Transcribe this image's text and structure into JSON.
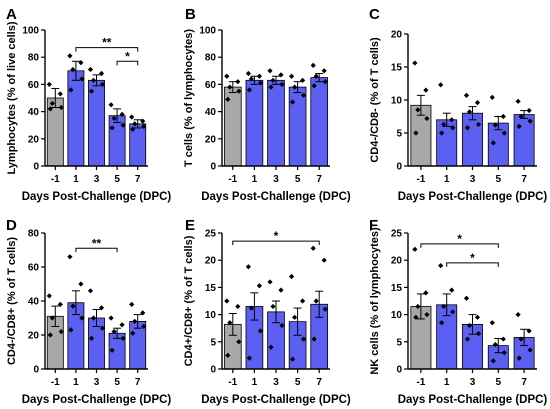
{
  "figure": {
    "colors": {
      "control_bar": "#a8a8a8",
      "treated_bar": "#5b5ff2",
      "point": "#000000",
      "axis": "#000000"
    }
  },
  "chart_data": [
    {
      "type": "bar",
      "panel_letter": "A",
      "ylabel": "Lymphocytes (% of live cells)",
      "xlabel": "Days Post-Challenge (DPC)",
      "categories": [
        "-1",
        "1",
        "3",
        "5",
        "7"
      ],
      "values": [
        50,
        70,
        63,
        37,
        31
      ],
      "errors": [
        7,
        7,
        4,
        5,
        3
      ],
      "points": [
        [
          60,
          53,
          46,
          43,
          42
        ],
        [
          81,
          76,
          71,
          64,
          56
        ],
        [
          71,
          68,
          63,
          60,
          55
        ],
        [
          45,
          38,
          35,
          30,
          28
        ],
        [
          36,
          33,
          31,
          29,
          27
        ]
      ],
      "ylim": [
        0,
        100
      ],
      "yticks": [
        0,
        20,
        40,
        60,
        80,
        100
      ],
      "significance": [
        {
          "from": "1",
          "to": "7",
          "label": "**",
          "y": 87
        },
        {
          "from": "5",
          "to": "7",
          "label": "*",
          "y": 77
        }
      ]
    },
    {
      "type": "bar",
      "panel_letter": "B",
      "ylabel": "T cells (% of lymphocytes)",
      "xlabel": "Days Post-Challenge (DPC)",
      "categories": [
        "-1",
        "1",
        "3",
        "5",
        "7"
      ],
      "values": [
        58,
        63,
        63,
        58,
        65
      ],
      "errors": [
        4,
        3,
        3,
        4,
        3
      ],
      "points": [
        [
          66,
          62,
          58,
          55,
          49
        ],
        [
          68,
          66,
          64,
          61,
          56
        ],
        [
          70,
          67,
          63,
          60,
          58
        ],
        [
          66,
          63,
          58,
          52,
          47
        ],
        [
          74,
          70,
          66,
          62,
          59
        ]
      ],
      "ylim": [
        0,
        100
      ],
      "yticks": [
        0,
        20,
        40,
        60,
        80,
        100
      ],
      "significance": []
    },
    {
      "type": "bar",
      "panel_letter": "C",
      "ylabel": "CD4-/CD8- (% of T cells)",
      "xlabel": "Days Post-Challenge (DPC)",
      "categories": [
        "-1",
        "1",
        "3",
        "5",
        "7"
      ],
      "values": [
        9.2,
        7.0,
        8.0,
        6.5,
        7.8
      ],
      "errors": [
        1.5,
        1.0,
        1.0,
        1.0,
        0.6
      ],
      "points": [
        [
          15.6,
          11.5,
          8.5,
          7.2,
          5.0
        ],
        [
          12.3,
          7.0,
          6.3,
          5.8,
          5.0
        ],
        [
          10.7,
          9.6,
          8.2,
          6.3,
          5.8
        ],
        [
          10.4,
          7.5,
          6.2,
          5.0,
          3.5
        ],
        [
          9.8,
          8.4,
          7.5,
          6.8,
          6.0
        ]
      ],
      "ylim": [
        0,
        20
      ],
      "yticks": [
        0,
        5,
        10,
        15,
        20
      ],
      "significance": []
    },
    {
      "type": "bar",
      "panel_letter": "D",
      "ylabel": "CD4-/CD8+ (% of T cells)",
      "xlabel": "Days Post-Challenge (DPC)",
      "categories": [
        "-1",
        "1",
        "3",
        "5",
        "7"
      ],
      "values": [
        31,
        39,
        30,
        21,
        28
      ],
      "errors": [
        6,
        7,
        5,
        3,
        4
      ],
      "points": [
        [
          43,
          38,
          30,
          22,
          20
        ],
        [
          66,
          50,
          37,
          30,
          23
        ],
        [
          46,
          36,
          30,
          24,
          18
        ],
        [
          30,
          26,
          22,
          18,
          11
        ],
        [
          38,
          33,
          28,
          25,
          21
        ]
      ],
      "ylim": [
        0,
        80
      ],
      "yticks": [
        0,
        20,
        40,
        60,
        80
      ],
      "significance": [
        {
          "from": "1",
          "to": "5",
          "label": "**",
          "y": 71
        }
      ]
    },
    {
      "type": "bar",
      "panel_letter": "E",
      "ylabel": "CD4+/CD8+ (% of T cells)",
      "xlabel": "Days Post-Challenge (DPC)",
      "categories": [
        "-1",
        "1",
        "3",
        "5",
        "7"
      ],
      "values": [
        8.2,
        11.5,
        10.5,
        8.7,
        11.9
      ],
      "errors": [
        2.0,
        2.5,
        2.0,
        2.5,
        2.4
      ],
      "points": [
        [
          12.5,
          11.5,
          8.5,
          5.0,
          2.5
        ],
        [
          18.8,
          15.3,
          11.2,
          7.0,
          2.0
        ],
        [
          16.0,
          14.5,
          11.5,
          8.0,
          4.0
        ],
        [
          17.0,
          12.5,
          9.5,
          5.5,
          1.8
        ],
        [
          22.2,
          20.0,
          12.5,
          11.0,
          5.5
        ]
      ],
      "ylim": [
        0,
        25
      ],
      "yticks": [
        0,
        5,
        10,
        15,
        20,
        25
      ],
      "significance": [
        {
          "from": "-1",
          "to": "7",
          "label": "*",
          "y": 23.5
        }
      ]
    },
    {
      "type": "bar",
      "panel_letter": "F",
      "ylabel": "NK cells (% of lymphocytes)",
      "xlabel": "Days Post-Challenge (DPC)",
      "categories": [
        "-1",
        "1",
        "3",
        "5",
        "7"
      ],
      "values": [
        11.5,
        11.8,
        8.2,
        4.3,
        5.8
      ],
      "errors": [
        2.3,
        2.0,
        1.8,
        1.3,
        1.5
      ],
      "points": [
        [
          22.0,
          14.0,
          11.5,
          10.0,
          9.5
        ],
        [
          19.0,
          14.5,
          11.5,
          10.5,
          8.5
        ],
        [
          13.0,
          9.5,
          8.0,
          6.5,
          5.5
        ],
        [
          8.5,
          5.5,
          4.5,
          3.0,
          1.5
        ],
        [
          10.0,
          7.0,
          5.5,
          3.5,
          2.0
        ]
      ],
      "ylim": [
        0,
        25
      ],
      "yticks": [
        0,
        5,
        10,
        15,
        20,
        25
      ],
      "significance": [
        {
          "from": "-1",
          "to": "5",
          "label": "*",
          "y": 23
        },
        {
          "from": "1",
          "to": "5",
          "label": "*",
          "y": 19.5
        }
      ]
    }
  ]
}
